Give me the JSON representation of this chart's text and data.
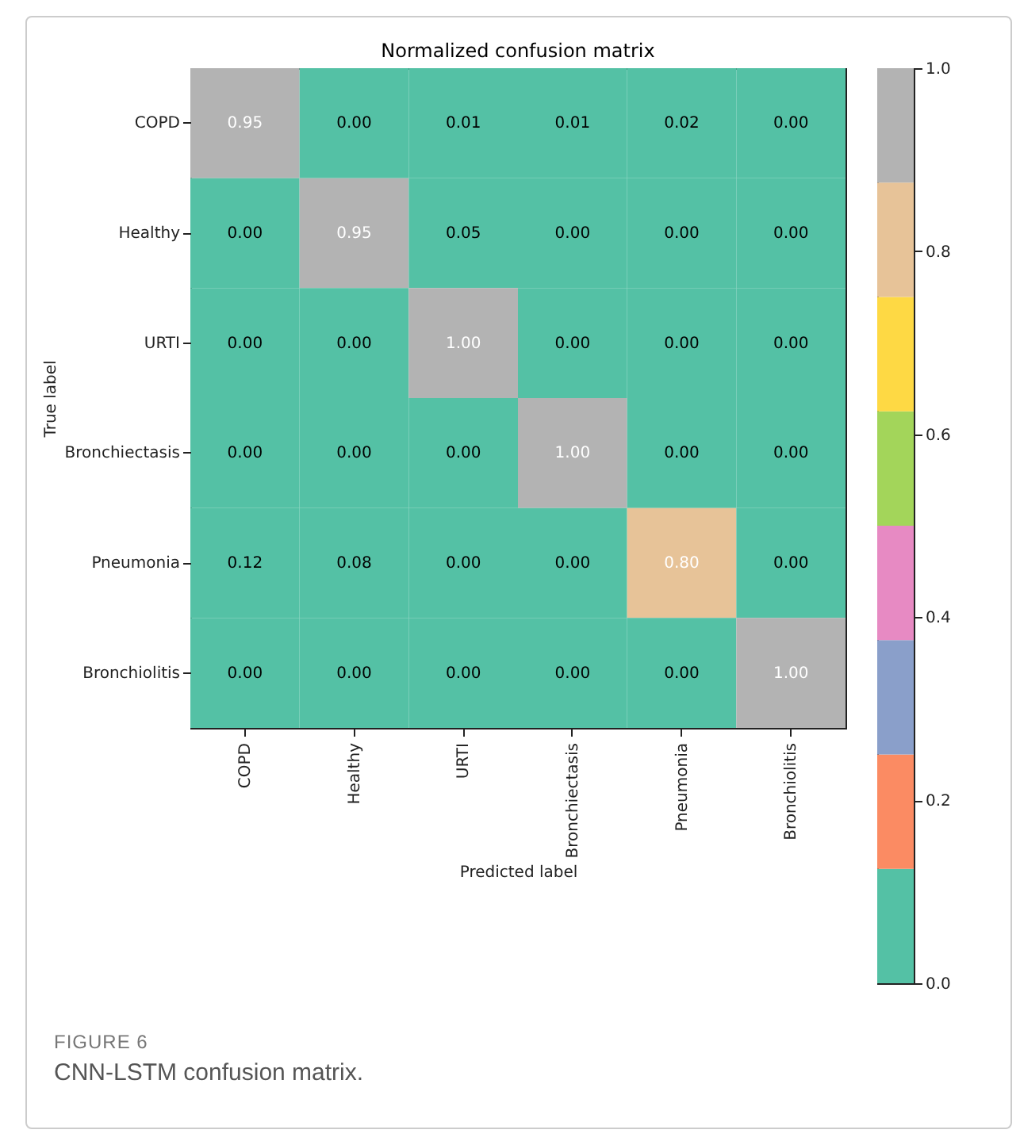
{
  "chart_data": {
    "type": "heatmap",
    "title": "Normalized confusion matrix",
    "xlabel": "Predicted label",
    "ylabel": "True label",
    "categories": [
      "COPD",
      "Healthy",
      "URTI",
      "Bronchiectasis",
      "Pneumonia",
      "Bronchiolitis"
    ],
    "y_categories": [
      "COPD",
      "Healthy",
      "URTI",
      "Bronchiectasis",
      "Pneumonia",
      "Bronchiolitis"
    ],
    "cells": [
      [
        0.95,
        0,
        0.01,
        0.01,
        0.02,
        0
      ],
      [
        0,
        0.95,
        0.05,
        0,
        0,
        0
      ],
      [
        0,
        0,
        1,
        0,
        0,
        0
      ],
      [
        0,
        0,
        0,
        1,
        0,
        0
      ],
      [
        0.12,
        0.08,
        0,
        0,
        0.8,
        0
      ],
      [
        0,
        0,
        0,
        0,
        0,
        1
      ]
    ],
    "cell_labels": [
      [
        "0.95",
        "0.00",
        "0.01",
        "0.01",
        "0.02",
        "0.00"
      ],
      [
        "0.00",
        "0.95",
        "0.05",
        "0.00",
        "0.00",
        "0.00"
      ],
      [
        "0.00",
        "0.00",
        "1.00",
        "0.00",
        "0.00",
        "0.00"
      ],
      [
        "0.00",
        "0.00",
        "0.00",
        "1.00",
        "0.00",
        "0.00"
      ],
      [
        "0.12",
        "0.08",
        "0.00",
        "0.00",
        "0.80",
        "0.00"
      ],
      [
        "0.00",
        "0.00",
        "0.00",
        "0.00",
        "0.00",
        "1.00"
      ]
    ],
    "clim": [
      0,
      1
    ],
    "cticks": [
      {
        "value": 0,
        "label": "0.0"
      },
      {
        "value": 0.2,
        "label": "0.2"
      },
      {
        "value": 0.4,
        "label": "0.4"
      },
      {
        "value": 0.6,
        "label": "0.6"
      },
      {
        "value": 0.8,
        "label": "0.8"
      },
      {
        "value": 1,
        "label": "1.0"
      }
    ],
    "annotations": [
      "FIGURE 6",
      "CNN-LSTM confusion matrix."
    ]
  }
}
